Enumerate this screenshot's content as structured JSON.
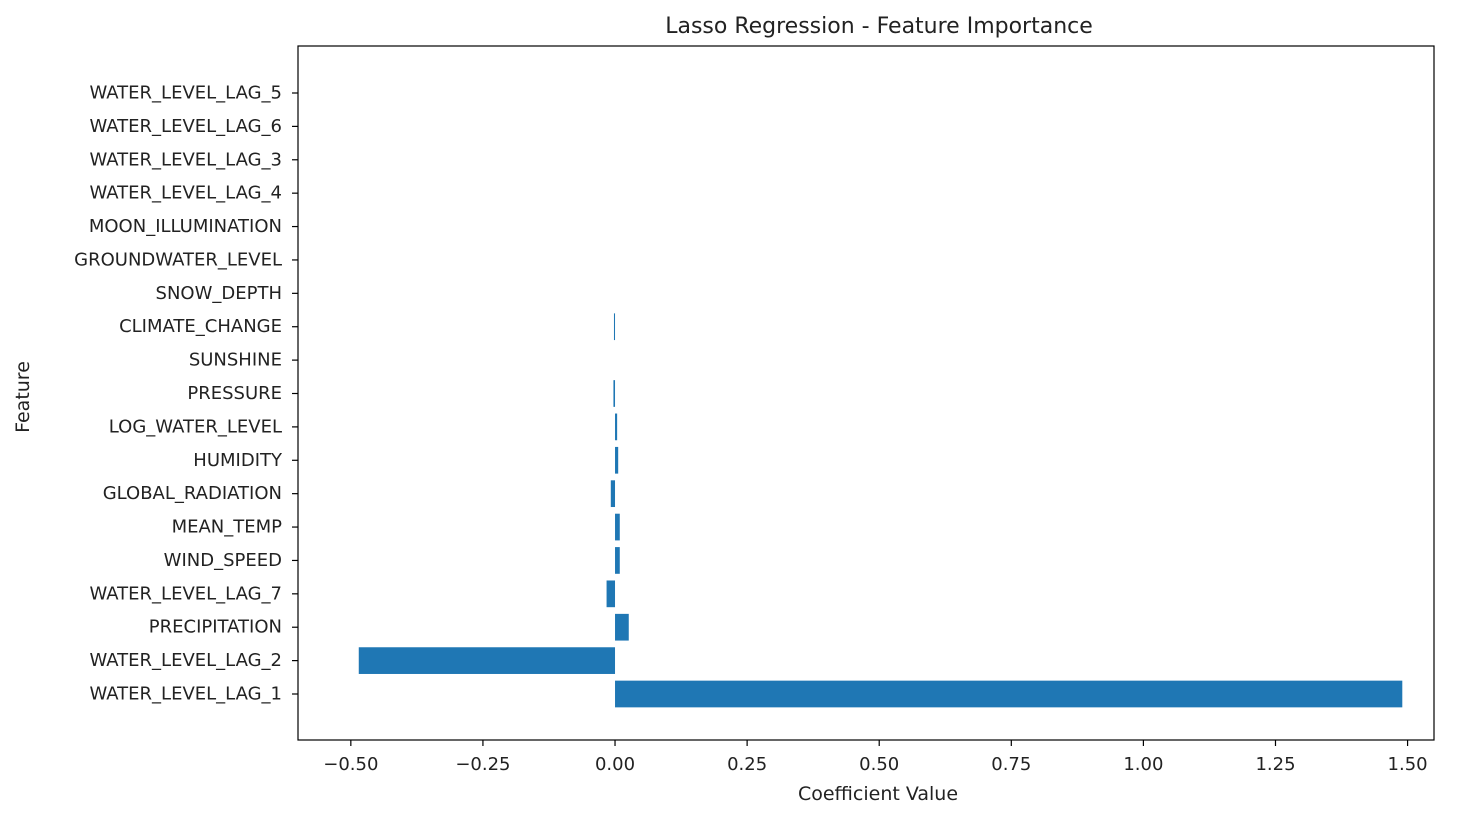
{
  "chart_data": {
    "type": "bar",
    "orientation": "horizontal",
    "title": "Lasso Regression - Feature Importance",
    "xlabel": "Coefficient Value",
    "ylabel": "Feature",
    "bar_color": "#1f77b4",
    "grid": false,
    "legend": "none",
    "xlim": [
      -0.6,
      1.55
    ],
    "x_ticks": [
      -0.5,
      -0.25,
      0.0,
      0.25,
      0.5,
      0.75,
      1.0,
      1.25,
      1.5
    ],
    "x_tick_labels": [
      "−0.50",
      "−0.25",
      "0.00",
      "0.25",
      "0.50",
      "0.75",
      "1.00",
      "1.25",
      "1.50"
    ],
    "categories": [
      "WATER_LEVEL_LAG_1",
      "WATER_LEVEL_LAG_2",
      "PRECIPITATION",
      "WATER_LEVEL_LAG_7",
      "WIND_SPEED",
      "MEAN_TEMP",
      "GLOBAL_RADIATION",
      "HUMIDITY",
      "LOG_WATER_LEVEL",
      "PRESSURE",
      "SUNSHINE",
      "CLIMATE_CHANGE",
      "SNOW_DEPTH",
      "GROUNDWATER_LEVEL",
      "MOON_ILLUMINATION",
      "WATER_LEVEL_LAG_4",
      "WATER_LEVEL_LAG_3",
      "WATER_LEVEL_LAG_6",
      "WATER_LEVEL_LAG_5"
    ],
    "values": [
      1.49,
      -0.485,
      0.026,
      -0.016,
      0.009,
      0.009,
      -0.008,
      0.006,
      0.004,
      -0.003,
      0.0,
      -0.002,
      0.0,
      0.0,
      0.0,
      0.0,
      0.0,
      0.0,
      0.0
    ]
  }
}
